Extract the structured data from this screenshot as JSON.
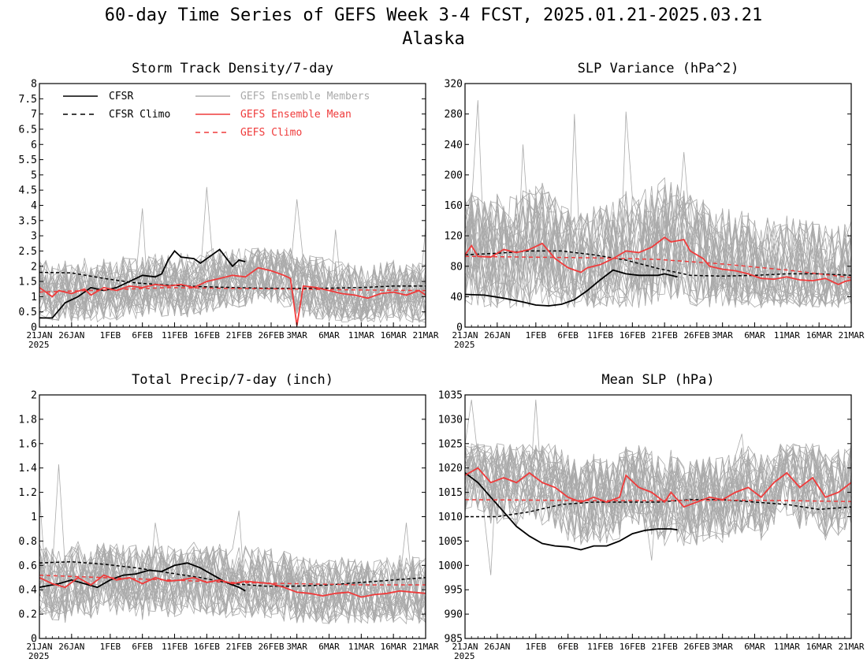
{
  "title": "60-day Time Series of GEFS Week 3-4 FCST, 2025.01.21-2025.03.21",
  "subtitle": "Alaska",
  "x_tick_labels": [
    "21JAN",
    "26JAN",
    "1FEB",
    "6FEB",
    "11FEB",
    "16FEB",
    "21FEB",
    "26FEB",
    "3MAR",
    "6MAR",
    "11MAR",
    "16MAR",
    "21MAR"
  ],
  "x_tick_days": [
    0,
    5,
    11,
    16,
    21,
    26,
    31,
    36,
    40,
    45,
    50,
    55,
    60
  ],
  "x_year_label": "2025",
  "legend": {
    "cfsr": "CFSR",
    "cfsr_climo": "CFSR Climo",
    "members": "GEFS Ensemble Members",
    "mean": "GEFS Ensemble Mean",
    "gefs_climo": "GEFS Climo"
  },
  "colors": {
    "cfsr": "#000000",
    "members": "#aaaaaa",
    "mean": "#ef3b3b",
    "legend_members_text": "#aaaaaa",
    "legend_mean_text": "#ef3b3b"
  },
  "chart_data": [
    {
      "type": "line",
      "title": "Storm Track Density/7-day",
      "ylim": [
        0,
        8
      ],
      "yticks": [
        "0",
        "0.5",
        "1",
        "1.5",
        "2",
        "2.5",
        "3",
        "3.5",
        "4",
        "4.5",
        "5",
        "5.5",
        "6",
        "6.5",
        "7",
        "7.5",
        "8"
      ],
      "ytick_values": [
        0,
        0.5,
        1,
        1.5,
        2,
        2.5,
        3,
        3.5,
        4,
        4.5,
        5,
        5.5,
        6,
        6.5,
        7,
        7.5,
        8
      ],
      "members_spread": {
        "low": 0.15,
        "high": 2.6,
        "spikes": [
          [
            16,
            3.9
          ],
          [
            26,
            4.6
          ],
          [
            40,
            4.2
          ],
          [
            46,
            3.2
          ],
          [
            60,
            3.3
          ]
        ]
      },
      "series": [
        {
          "name": "CFSR",
          "x": [
            0,
            2,
            4,
            6,
            8,
            10,
            12,
            14,
            16,
            18,
            19,
            20,
            21,
            22,
            24,
            25,
            27,
            28,
            30,
            31,
            32
          ],
          "values": [
            0.3,
            0.3,
            0.8,
            1.0,
            1.3,
            1.2,
            1.3,
            1.5,
            1.7,
            1.65,
            1.75,
            2.2,
            2.5,
            2.3,
            2.25,
            2.1,
            2.4,
            2.55,
            2.0,
            2.2,
            2.15
          ]
        },
        {
          "name": "CFSR Climo",
          "x": [
            0,
            5,
            10,
            15,
            20,
            25,
            30,
            35,
            40,
            45,
            50,
            55,
            60
          ],
          "values": [
            1.8,
            1.78,
            1.6,
            1.45,
            1.38,
            1.33,
            1.3,
            1.28,
            1.27,
            1.28,
            1.3,
            1.35,
            1.35
          ]
        },
        {
          "name": "GEFS Ensemble Mean",
          "x": [
            0,
            2,
            3,
            5,
            7,
            8,
            10,
            12,
            14,
            16,
            18,
            20,
            22,
            24,
            26,
            28,
            30,
            32,
            34,
            36,
            38,
            39,
            40,
            41,
            43,
            45,
            47,
            49,
            51,
            53,
            55,
            57,
            59,
            60
          ],
          "values": [
            1.3,
            1.0,
            1.2,
            1.1,
            1.25,
            1.05,
            1.3,
            1.2,
            1.35,
            1.3,
            1.4,
            1.35,
            1.4,
            1.3,
            1.5,
            1.6,
            1.7,
            1.65,
            1.95,
            1.85,
            1.7,
            1.6,
            0.05,
            1.35,
            1.3,
            1.2,
            1.1,
            1.05,
            0.95,
            1.1,
            1.15,
            1.05,
            1.2,
            1.05
          ]
        },
        {
          "name": "GEFS Climo",
          "x": [
            0,
            10,
            20,
            30,
            40,
            50,
            60
          ],
          "values": [
            1.15,
            1.22,
            1.3,
            1.27,
            1.25,
            1.22,
            1.2
          ]
        }
      ]
    },
    {
      "type": "line",
      "title": "SLP Variance (hPa^2)",
      "ylim": [
        0,
        320
      ],
      "yticks": [
        "0",
        "40",
        "80",
        "120",
        "160",
        "200",
        "240",
        "280",
        "320"
      ],
      "ytick_values": [
        0,
        40,
        80,
        120,
        160,
        200,
        240,
        280,
        320
      ],
      "members_spread": {
        "low": 25,
        "high": 215,
        "spikes": [
          [
            2,
            298
          ],
          [
            9,
            240
          ],
          [
            17,
            280
          ],
          [
            25,
            283
          ],
          [
            34,
            230
          ]
        ]
      },
      "series": [
        {
          "name": "CFSR",
          "x": [
            0,
            3,
            6,
            9,
            11,
            13,
            15,
            17,
            19,
            21,
            23,
            25,
            27,
            30,
            31,
            33
          ],
          "values": [
            43,
            42,
            38,
            33,
            29,
            28,
            30,
            36,
            48,
            62,
            75,
            70,
            68,
            68,
            70,
            66
          ]
        },
        {
          "name": "CFSR Climo",
          "x": [
            0,
            5,
            10,
            15,
            20,
            25,
            30,
            35,
            40,
            45,
            50,
            55,
            60
          ],
          "values": [
            95,
            97,
            100,
            100,
            95,
            88,
            77,
            68,
            67,
            68,
            70,
            70,
            68
          ]
        },
        {
          "name": "GEFS Ensemble Mean",
          "x": [
            0,
            1,
            2,
            4,
            6,
            8,
            10,
            12,
            14,
            16,
            18,
            19,
            21,
            23,
            25,
            27,
            29,
            31,
            32,
            34,
            35,
            37,
            38,
            40,
            42,
            44,
            46,
            48,
            50,
            52,
            54,
            56,
            58,
            59,
            60
          ],
          "values": [
            95,
            107,
            93,
            92,
            102,
            98,
            102,
            110,
            90,
            78,
            72,
            78,
            82,
            90,
            100,
            98,
            105,
            118,
            112,
            115,
            100,
            90,
            80,
            76,
            74,
            70,
            64,
            63,
            66,
            62,
            61,
            64,
            56,
            60,
            62
          ]
        },
        {
          "name": "GEFS Climo",
          "x": [
            0,
            10,
            20,
            30,
            40,
            50,
            60
          ],
          "values": [
            93,
            92,
            91,
            89,
            83,
            75,
            65
          ]
        }
      ]
    },
    {
      "type": "line",
      "title": "Total Precip/7-day (inch)",
      "ylim": [
        0,
        2
      ],
      "yticks": [
        "0",
        "0.2",
        "0.4",
        "0.6",
        "0.8",
        "1",
        "1.2",
        "1.4",
        "1.6",
        "1.8",
        "2"
      ],
      "ytick_values": [
        0,
        0.2,
        0.4,
        0.6,
        0.8,
        1,
        1.2,
        1.4,
        1.6,
        1.8,
        2
      ],
      "members_spread": {
        "low": 0.12,
        "high": 0.82,
        "spikes": [
          [
            0,
            1.2
          ],
          [
            3,
            1.43
          ],
          [
            18,
            0.95
          ],
          [
            31,
            1.05
          ],
          [
            57,
            0.95
          ]
        ]
      },
      "series": [
        {
          "name": "CFSR",
          "x": [
            0,
            3,
            5,
            7,
            9,
            11,
            13,
            15,
            17,
            19,
            21,
            23,
            25,
            27,
            29,
            31,
            32
          ],
          "values": [
            0.42,
            0.45,
            0.48,
            0.45,
            0.42,
            0.48,
            0.52,
            0.53,
            0.56,
            0.55,
            0.6,
            0.62,
            0.58,
            0.52,
            0.46,
            0.42,
            0.39
          ]
        },
        {
          "name": "CFSR Climo",
          "x": [
            0,
            5,
            10,
            15,
            20,
            25,
            30,
            35,
            40,
            45,
            50,
            55,
            60
          ],
          "values": [
            0.62,
            0.63,
            0.61,
            0.58,
            0.54,
            0.5,
            0.45,
            0.43,
            0.43,
            0.44,
            0.46,
            0.48,
            0.5
          ]
        },
        {
          "name": "GEFS Ensemble Mean",
          "x": [
            0,
            2,
            4,
            6,
            8,
            10,
            12,
            14,
            16,
            18,
            20,
            22,
            24,
            26,
            28,
            30,
            32,
            34,
            36,
            38,
            40,
            42,
            44,
            46,
            48,
            50,
            52,
            54,
            56,
            58,
            60
          ],
          "values": [
            0.5,
            0.45,
            0.42,
            0.5,
            0.44,
            0.52,
            0.48,
            0.5,
            0.45,
            0.5,
            0.47,
            0.48,
            0.5,
            0.46,
            0.48,
            0.45,
            0.47,
            0.46,
            0.45,
            0.42,
            0.38,
            0.37,
            0.35,
            0.37,
            0.38,
            0.34,
            0.36,
            0.37,
            0.39,
            0.38,
            0.37
          ]
        },
        {
          "name": "GEFS Climo",
          "x": [
            0,
            10,
            20,
            30,
            40,
            50,
            60
          ],
          "values": [
            0.52,
            0.5,
            0.48,
            0.46,
            0.45,
            0.44,
            0.44
          ]
        }
      ]
    },
    {
      "type": "line",
      "title": "Mean SLP (hPa)",
      "ylim": [
        985,
        1035
      ],
      "yticks": [
        "985",
        "990",
        "995",
        "1000",
        "1005",
        "1010",
        "1015",
        "1020",
        "1025",
        "1030",
        "1035"
      ],
      "ytick_values": [
        985,
        990,
        995,
        1000,
        1005,
        1010,
        1015,
        1020,
        1025,
        1030,
        1035
      ],
      "members_spread": {
        "low": 1004,
        "high": 1025,
        "spikes": [
          [
            1,
            1034
          ],
          [
            4,
            998
          ],
          [
            11,
            1034
          ],
          [
            29,
            1001
          ],
          [
            43,
            1027
          ]
        ]
      },
      "series": [
        {
          "name": "CFSR",
          "x": [
            0,
            2,
            4,
            6,
            8,
            10,
            12,
            14,
            16,
            18,
            20,
            22,
            24,
            26,
            28,
            30,
            32,
            33
          ],
          "values": [
            1019,
            1017,
            1014,
            1011,
            1008,
            1006,
            1004.5,
            1004,
            1003.8,
            1003.2,
            1004,
            1004,
            1005,
            1006.5,
            1007.2,
            1007.5,
            1007.5,
            1007.3
          ]
        },
        {
          "name": "CFSR Climo",
          "x": [
            0,
            5,
            10,
            15,
            20,
            25,
            30,
            35,
            40,
            45,
            50,
            55,
            60
          ],
          "values": [
            1010,
            1010,
            1011,
            1012.5,
            1013,
            1013,
            1013,
            1013.5,
            1013.5,
            1013,
            1012.5,
            1011.5,
            1012
          ]
        },
        {
          "name": "GEFS Ensemble Mean",
          "x": [
            0,
            2,
            4,
            6,
            8,
            10,
            12,
            14,
            16,
            18,
            20,
            22,
            24,
            25,
            27,
            29,
            31,
            32,
            34,
            36,
            38,
            40,
            42,
            44,
            46,
            48,
            50,
            52,
            54,
            56,
            58,
            60
          ],
          "values": [
            1018.5,
            1020,
            1017,
            1018,
            1017,
            1019,
            1017,
            1016,
            1014,
            1013,
            1014,
            1013,
            1014,
            1018.5,
            1016,
            1015,
            1013,
            1015,
            1012,
            1013,
            1014,
            1013.5,
            1015,
            1016,
            1014,
            1017,
            1019,
            1016,
            1018,
            1014,
            1015,
            1017
          ]
        },
        {
          "name": "GEFS Climo",
          "x": [
            0,
            10,
            20,
            30,
            40,
            50,
            60
          ],
          "values": [
            1013.5,
            1013.4,
            1013.3,
            1013.3,
            1013.4,
            1013.3,
            1013.1
          ]
        }
      ]
    }
  ]
}
